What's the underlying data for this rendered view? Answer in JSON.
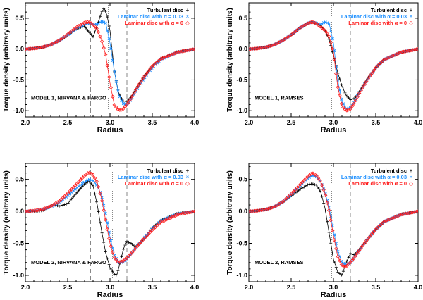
{
  "chart_data": [
    {
      "type": "line",
      "annotation": "MODEL 1, NIRVANA & FARGO",
      "xlabel": "Radius",
      "ylabel": "Torque density (arbitrary units)",
      "xlim": [
        2.0,
        4.0
      ],
      "ylim": [
        -1.1,
        0.75
      ],
      "xticks": [
        "2.0",
        "2.5",
        "3.0",
        "3.5",
        "4.0"
      ],
      "yticks": [
        "-1.0",
        "-0.5",
        "0.0",
        "0.5"
      ],
      "legend_position": "top-right",
      "vlines": [
        {
          "x": 2.77,
          "style": "dashed"
        },
        {
          "x": 2.98,
          "style": "dotted"
        },
        {
          "x": 3.2,
          "style": "dashed"
        }
      ],
      "series": [
        {
          "name": "Turbulent disc",
          "marker": "+",
          "color": "#000000",
          "x": [
            2.0,
            2.1,
            2.2,
            2.3,
            2.4,
            2.5,
            2.6,
            2.7,
            2.75,
            2.8,
            2.85,
            2.9,
            2.93,
            2.96,
            3.0,
            3.05,
            3.1,
            3.15,
            3.2,
            3.25,
            3.3,
            3.4,
            3.5,
            3.6,
            3.8,
            4.0
          ],
          "y": [
            0.0,
            0.01,
            0.03,
            0.07,
            0.13,
            0.22,
            0.33,
            0.37,
            0.28,
            0.2,
            0.38,
            0.6,
            0.66,
            0.58,
            0.3,
            -0.35,
            -0.7,
            -0.84,
            -0.85,
            -0.78,
            -0.66,
            -0.45,
            -0.28,
            -0.15,
            -0.04,
            0.0
          ]
        },
        {
          "name": "Laminar disc with α = 0.03",
          "marker": "×",
          "color": "#1e90ff",
          "x": [
            2.0,
            2.1,
            2.2,
            2.3,
            2.4,
            2.5,
            2.6,
            2.7,
            2.75,
            2.8,
            2.85,
            2.9,
            2.95,
            3.0,
            3.05,
            3.1,
            3.15,
            3.2,
            3.25,
            3.3,
            3.4,
            3.5,
            3.6,
            3.8,
            4.0
          ],
          "y": [
            0.0,
            0.01,
            0.03,
            0.07,
            0.14,
            0.23,
            0.33,
            0.4,
            0.42,
            0.4,
            0.4,
            0.45,
            0.42,
            0.1,
            -0.35,
            -0.72,
            -0.88,
            -0.9,
            -0.82,
            -0.7,
            -0.48,
            -0.3,
            -0.17,
            -0.05,
            0.0
          ]
        },
        {
          "name": "Laminar disc with α = 0",
          "marker": "◇",
          "color": "#ff2020",
          "x": [
            2.0,
            2.1,
            2.2,
            2.3,
            2.4,
            2.5,
            2.6,
            2.7,
            2.75,
            2.8,
            2.85,
            2.9,
            2.95,
            3.0,
            3.05,
            3.1,
            3.15,
            3.2,
            3.25,
            3.3,
            3.4,
            3.5,
            3.6,
            3.8,
            4.0
          ],
          "y": [
            0.0,
            0.01,
            0.03,
            0.07,
            0.14,
            0.24,
            0.35,
            0.43,
            0.44,
            0.4,
            0.32,
            0.15,
            -0.1,
            -0.55,
            -0.9,
            -0.99,
            -0.98,
            -0.9,
            -0.8,
            -0.67,
            -0.45,
            -0.28,
            -0.16,
            -0.05,
            0.0
          ]
        }
      ]
    },
    {
      "type": "line",
      "annotation": "MODEL 1, RAMSES",
      "xlabel": "Radius",
      "ylabel": "Torque density (arbitrary units)",
      "xlim": [
        2.0,
        4.0
      ],
      "ylim": [
        -1.1,
        0.75
      ],
      "xticks": [
        "2.0",
        "2.5",
        "3.0",
        "3.5",
        "4.0"
      ],
      "yticks": [
        "-1.0",
        "-0.5",
        "0.0",
        "0.5"
      ],
      "legend_position": "top-right",
      "vlines": [
        {
          "x": 2.77,
          "style": "dashed"
        },
        {
          "x": 2.98,
          "style": "dotted"
        },
        {
          "x": 3.2,
          "style": "dashed"
        }
      ],
      "series": [
        {
          "name": "Turbulent disc",
          "marker": "+",
          "color": "#000000",
          "x": [
            2.0,
            2.1,
            2.2,
            2.3,
            2.4,
            2.5,
            2.6,
            2.7,
            2.75,
            2.8,
            2.85,
            2.9,
            2.95,
            3.0,
            3.05,
            3.1,
            3.15,
            3.2,
            3.25,
            3.3,
            3.4,
            3.5,
            3.6,
            3.8,
            4.0
          ],
          "y": [
            0.0,
            0.01,
            0.03,
            0.07,
            0.14,
            0.23,
            0.34,
            0.42,
            0.44,
            0.42,
            0.38,
            0.3,
            0.15,
            -0.1,
            -0.38,
            -0.6,
            -0.75,
            -0.82,
            -0.8,
            -0.7,
            -0.48,
            -0.3,
            -0.17,
            -0.05,
            0.0
          ]
        },
        {
          "name": "Laminar disc with α = 0.03",
          "marker": "×",
          "color": "#1e90ff",
          "x": [
            2.0,
            2.1,
            2.2,
            2.3,
            2.4,
            2.5,
            2.6,
            2.7,
            2.75,
            2.8,
            2.85,
            2.9,
            2.95,
            3.0,
            3.05,
            3.1,
            3.15,
            3.2,
            3.25,
            3.3,
            3.4,
            3.5,
            3.6,
            3.8,
            4.0
          ],
          "y": [
            0.0,
            0.01,
            0.03,
            0.07,
            0.14,
            0.23,
            0.34,
            0.42,
            0.44,
            0.42,
            0.4,
            0.44,
            0.41,
            0.1,
            -0.5,
            -0.85,
            -0.97,
            -0.95,
            -0.85,
            -0.72,
            -0.5,
            -0.3,
            -0.17,
            -0.05,
            0.0
          ]
        },
        {
          "name": "Laminar disc with α = 0",
          "marker": "◇",
          "color": "#ff2020",
          "x": [
            2.0,
            2.1,
            2.2,
            2.3,
            2.4,
            2.5,
            2.6,
            2.7,
            2.75,
            2.8,
            2.85,
            2.9,
            2.95,
            3.0,
            3.05,
            3.1,
            3.15,
            3.2,
            3.25,
            3.3,
            3.4,
            3.5,
            3.6,
            3.8,
            4.0
          ],
          "y": [
            0.0,
            0.01,
            0.03,
            0.07,
            0.14,
            0.23,
            0.34,
            0.42,
            0.44,
            0.41,
            0.36,
            0.3,
            0.2,
            -0.05,
            -0.6,
            -0.92,
            -1.0,
            -0.97,
            -0.87,
            -0.73,
            -0.5,
            -0.3,
            -0.17,
            -0.05,
            0.0
          ]
        }
      ]
    },
    {
      "type": "line",
      "annotation": "MODEL 2, NIRVANA & FARGO",
      "xlabel": "Radius",
      "ylabel": "Torque density (arbitrary units)",
      "xlim": [
        2.0,
        4.0
      ],
      "ylim": [
        -1.1,
        0.75
      ],
      "xticks": [
        "2.0",
        "2.5",
        "3.0",
        "3.5",
        "4.0"
      ],
      "yticks": [
        "-1.0",
        "-0.5",
        "0.0",
        "0.5"
      ],
      "legend_position": "top-right",
      "vlines": [
        {
          "x": 2.77,
          "style": "dashed"
        },
        {
          "x": 3.03,
          "style": "dotted"
        },
        {
          "x": 3.2,
          "style": "dashed"
        }
      ],
      "series": [
        {
          "name": "Turbulent disc",
          "marker": "+",
          "color": "#000000",
          "x": [
            2.0,
            2.1,
            2.2,
            2.25,
            2.3,
            2.35,
            2.4,
            2.5,
            2.6,
            2.7,
            2.75,
            2.8,
            2.85,
            2.9,
            2.95,
            3.0,
            3.05,
            3.08,
            3.12,
            3.16,
            3.2,
            3.25,
            3.3,
            3.4,
            3.5,
            3.6,
            3.8,
            4.0
          ],
          "y": [
            0.0,
            0.0,
            0.01,
            0.04,
            0.08,
            0.1,
            0.08,
            0.12,
            0.28,
            0.43,
            0.47,
            0.4,
            0.1,
            -0.3,
            -0.65,
            -0.88,
            -0.98,
            -1.0,
            -0.8,
            -0.58,
            -0.47,
            -0.5,
            -0.56,
            -0.43,
            -0.26,
            -0.14,
            -0.03,
            0.0
          ]
        },
        {
          "name": "Laminar disc with α = 0.03",
          "marker": "×",
          "color": "#1e90ff",
          "x": [
            2.0,
            2.1,
            2.2,
            2.3,
            2.4,
            2.5,
            2.6,
            2.7,
            2.75,
            2.8,
            2.85,
            2.9,
            2.95,
            3.0,
            3.05,
            3.1,
            3.15,
            3.2,
            3.25,
            3.3,
            3.4,
            3.5,
            3.6,
            3.8,
            4.0
          ],
          "y": [
            0.0,
            0.01,
            0.03,
            0.07,
            0.14,
            0.24,
            0.36,
            0.46,
            0.5,
            0.48,
            0.4,
            0.25,
            -0.05,
            -0.4,
            -0.68,
            -0.8,
            -0.8,
            -0.75,
            -0.67,
            -0.58,
            -0.42,
            -0.27,
            -0.15,
            -0.04,
            0.0
          ]
        },
        {
          "name": "Laminar disc with α = 0",
          "marker": "◇",
          "color": "#ff2020",
          "x": [
            2.0,
            2.1,
            2.2,
            2.3,
            2.4,
            2.5,
            2.6,
            2.7,
            2.75,
            2.8,
            2.85,
            2.9,
            2.95,
            3.0,
            3.05,
            3.1,
            3.15,
            3.2,
            3.25,
            3.3,
            3.4,
            3.5,
            3.6,
            3.8,
            4.0
          ],
          "y": [
            0.0,
            0.01,
            0.03,
            0.08,
            0.16,
            0.28,
            0.42,
            0.56,
            0.61,
            0.57,
            0.45,
            0.2,
            -0.15,
            -0.5,
            -0.72,
            -0.8,
            -0.78,
            -0.73,
            -0.66,
            -0.58,
            -0.43,
            -0.29,
            -0.17,
            -0.05,
            0.0
          ]
        }
      ]
    },
    {
      "type": "line",
      "annotation": "MODEL 2, RAMSES",
      "xlabel": "Radius",
      "ylabel": "Torque density (arbitrary units)",
      "xlim": [
        2.0,
        4.0
      ],
      "ylim": [
        -1.1,
        0.75
      ],
      "xticks": [
        "2.0",
        "2.5",
        "3.0",
        "3.5",
        "4.0"
      ],
      "yticks": [
        "-1.0",
        "-0.5",
        "0.0",
        "0.5"
      ],
      "legend_position": "top-right",
      "vlines": [
        {
          "x": 2.77,
          "style": "dashed"
        },
        {
          "x": 2.98,
          "style": "dotted"
        },
        {
          "x": 3.2,
          "style": "dashed"
        }
      ],
      "series": [
        {
          "name": "Turbulent disc",
          "marker": "+",
          "color": "#000000",
          "x": [
            2.0,
            2.1,
            2.2,
            2.3,
            2.4,
            2.5,
            2.6,
            2.7,
            2.75,
            2.8,
            2.85,
            2.9,
            2.95,
            3.0,
            3.05,
            3.1,
            3.15,
            3.2,
            3.25,
            3.3,
            3.4,
            3.5,
            3.6,
            3.8,
            4.0
          ],
          "y": [
            0.0,
            0.01,
            0.03,
            0.07,
            0.14,
            0.24,
            0.34,
            0.42,
            0.43,
            0.41,
            0.3,
            0.05,
            -0.35,
            -0.75,
            -0.95,
            -1.0,
            -0.8,
            -0.66,
            -0.68,
            -0.6,
            -0.45,
            -0.28,
            -0.16,
            -0.04,
            0.0
          ]
        },
        {
          "name": "Laminar disc with α = 0.03",
          "marker": "×",
          "color": "#1e90ff",
          "x": [
            2.0,
            2.1,
            2.2,
            2.3,
            2.4,
            2.5,
            2.6,
            2.7,
            2.75,
            2.8,
            2.85,
            2.9,
            2.95,
            3.0,
            3.05,
            3.1,
            3.15,
            3.2,
            3.25,
            3.3,
            3.4,
            3.5,
            3.6,
            3.8,
            4.0
          ],
          "y": [
            0.0,
            0.01,
            0.03,
            0.07,
            0.15,
            0.26,
            0.39,
            0.52,
            0.56,
            0.54,
            0.46,
            0.3,
            0.05,
            -0.3,
            -0.62,
            -0.8,
            -0.84,
            -0.8,
            -0.72,
            -0.62,
            -0.44,
            -0.28,
            -0.16,
            -0.05,
            0.0
          ]
        },
        {
          "name": "Laminar disc with α = 0",
          "marker": "◇",
          "color": "#ff2020",
          "x": [
            2.0,
            2.1,
            2.2,
            2.3,
            2.4,
            2.5,
            2.6,
            2.7,
            2.75,
            2.8,
            2.85,
            2.9,
            2.95,
            3.0,
            3.05,
            3.1,
            3.15,
            3.2,
            3.25,
            3.3,
            3.4,
            3.5,
            3.6,
            3.8,
            4.0
          ],
          "y": [
            0.0,
            0.01,
            0.03,
            0.07,
            0.15,
            0.27,
            0.41,
            0.55,
            0.6,
            0.56,
            0.46,
            0.28,
            0.0,
            -0.38,
            -0.7,
            -0.85,
            -0.86,
            -0.8,
            -0.72,
            -0.62,
            -0.44,
            -0.28,
            -0.16,
            -0.05,
            0.0
          ]
        }
      ]
    }
  ]
}
